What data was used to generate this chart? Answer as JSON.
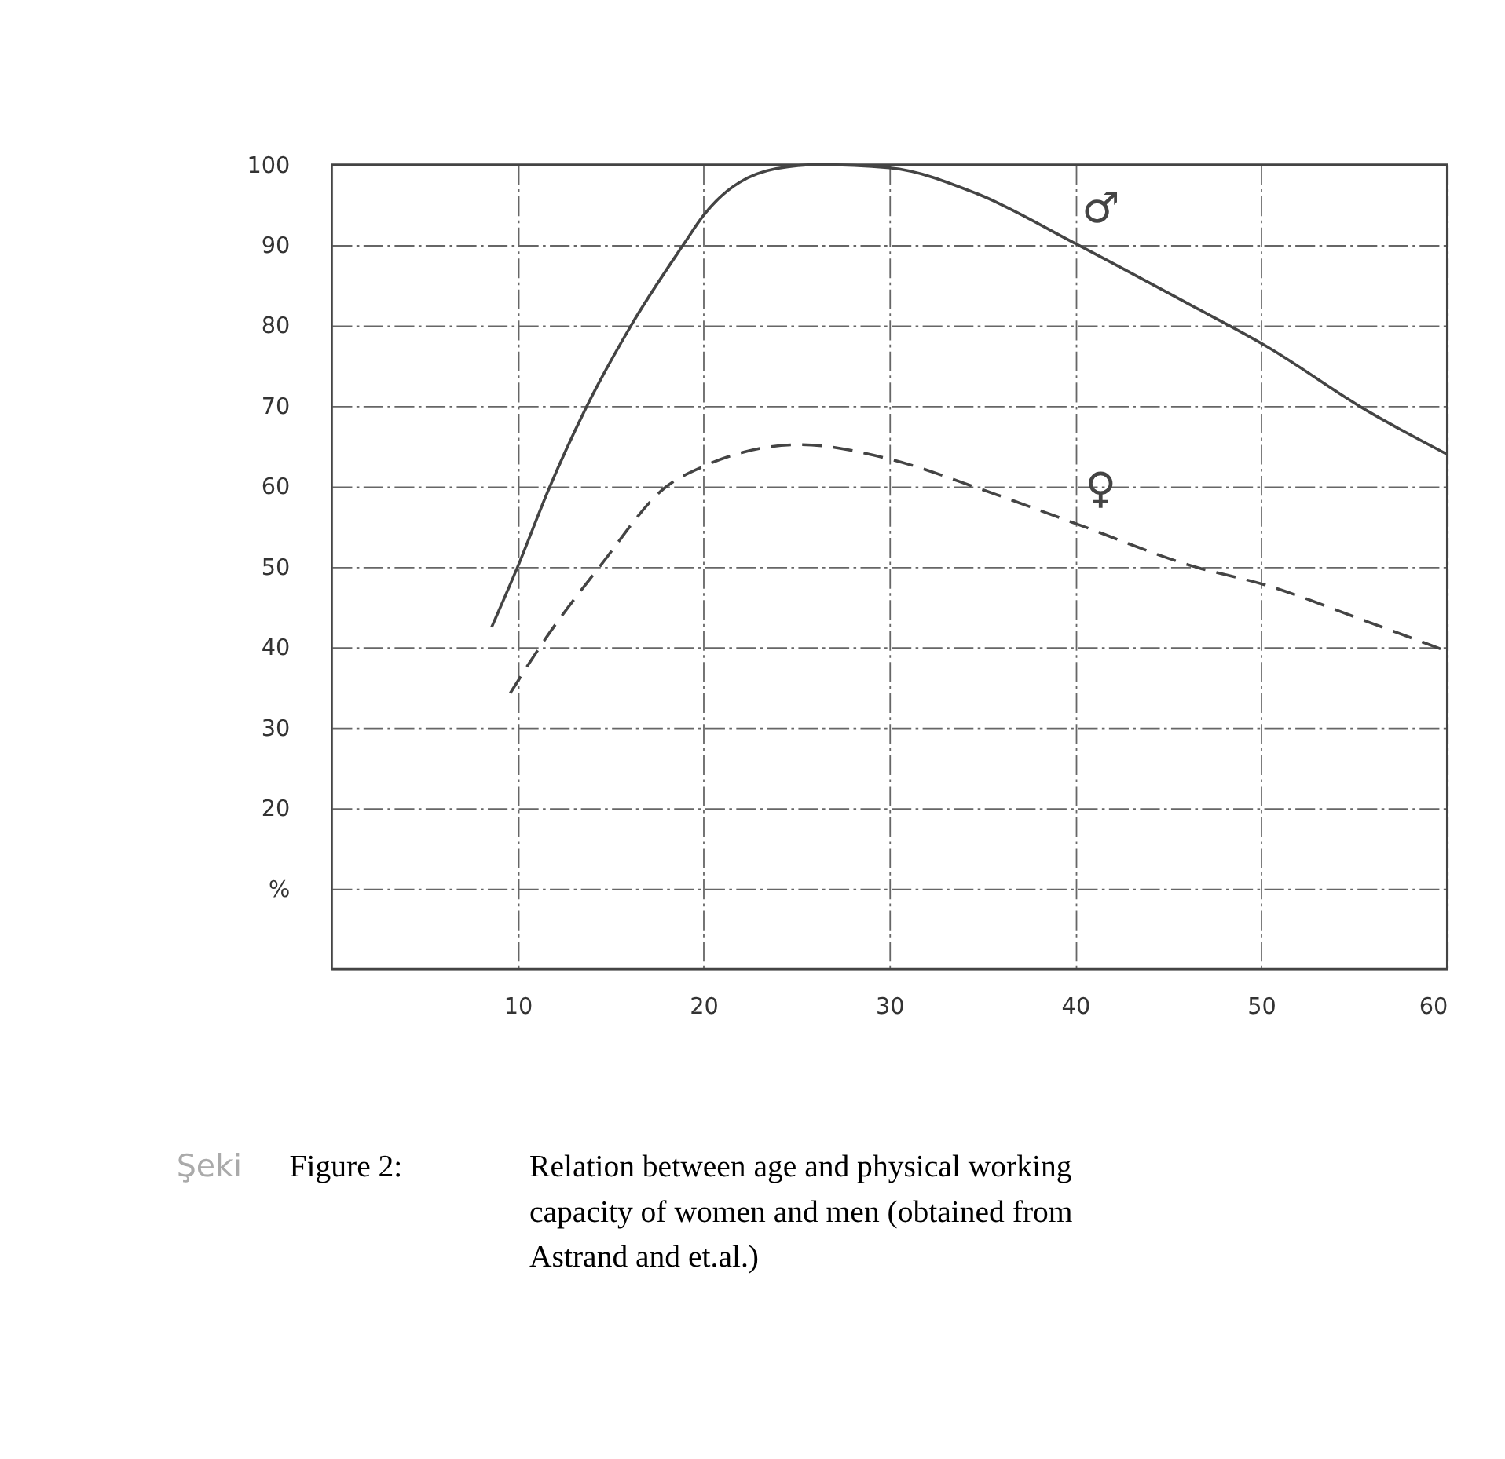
{
  "chart_data": {
    "type": "line",
    "xlim": [
      0,
      60
    ],
    "xticks": [
      10,
      20,
      30,
      40,
      50,
      60
    ],
    "ylim": [
      0,
      100
    ],
    "yticks": [
      {
        "value": 10,
        "label": "%"
      },
      20,
      30,
      40,
      50,
      60,
      70,
      80,
      90,
      100
    ],
    "grid": true,
    "series": [
      {
        "name": "♂",
        "color": "#444444",
        "line_style": "solid",
        "x": [
          8.6,
          10,
          11.7,
          13.6,
          16.1,
          18.9,
          20,
          23.9,
          26.2,
          30,
          34.7,
          40,
          46,
          50.3,
          55.7,
          60
        ],
        "values": [
          42.5,
          50,
          59.8,
          69.4,
          80,
          90,
          93.7,
          99.5,
          100,
          99.6,
          96.4,
          90.2,
          82.8,
          77.4,
          69.4,
          64
        ]
      },
      {
        "name": "♀",
        "color": "#444444",
        "line_style": "dashed",
        "x": [
          9.6,
          11.3,
          14.5,
          17.9,
          20,
          22.2,
          25.2,
          30,
          35,
          40,
          46.3,
          50.3,
          55.7,
          60
        ],
        "values": [
          34.3,
          40.4,
          50.3,
          59.8,
          62.5,
          64.3,
          65.2,
          63.4,
          59.6,
          55.4,
          50.1,
          47.7,
          43.2,
          39.5
        ]
      }
    ],
    "annotations": [
      "Şeki",
      "Figure 2:",
      "Relation between age and physical working capacity of women and men (obtained from Astrand and et.al.)"
    ]
  }
}
